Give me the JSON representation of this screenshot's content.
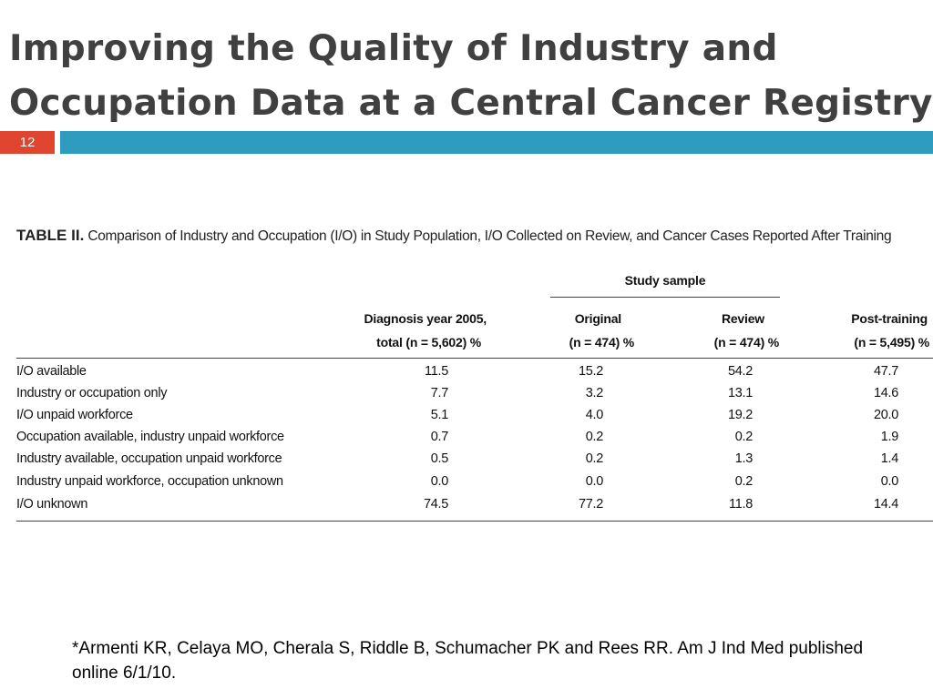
{
  "slide": {
    "title_line1": "Improving the Quality of Industry and",
    "title_line2": "Occupation Data at a Central Cancer Registry",
    "page_number": "12",
    "accent_colors": {
      "page_badge": "#e0452f",
      "title_bar": "#2d9cbf"
    }
  },
  "table": {
    "label": "TABLE II.",
    "caption": "Comparison of Industry and Occupation (I/O) in Study Population, I/O Collected on Review, and Cancer Cases Reported After Training",
    "group_header": "Study sample",
    "columns": [
      {
        "line1": "Diagnosis year 2005,",
        "line2": "total (n = 5,602) %"
      },
      {
        "line1": "Original",
        "line2": "(n = 474) %"
      },
      {
        "line1": "Review",
        "line2": "(n = 474) %"
      },
      {
        "line1": "Post-training",
        "line2": "(n = 5,495) %"
      }
    ],
    "rows": [
      {
        "label": "I/O available",
        "values": [
          "11.5",
          "15.2",
          "54.2",
          "47.7"
        ]
      },
      {
        "label": "Industry or occupation only",
        "values": [
          "7.7",
          "3.2",
          "13.1",
          "14.6"
        ]
      },
      {
        "label": "I/O unpaid workforce",
        "values": [
          "5.1",
          "4.0",
          "19.2",
          "20.0"
        ]
      },
      {
        "label": "Occupation available, industry unpaid workforce",
        "values": [
          "0.7",
          "0.2",
          "0.2",
          "1.9"
        ]
      },
      {
        "label": "Industry available, occupation unpaid workforce",
        "values": [
          "0.5",
          "0.2",
          "1.3",
          "1.4"
        ]
      },
      {
        "label": "Industry unpaid workforce, occupation unknown",
        "values": [
          "0.0",
          "0.0",
          "0.2",
          "0.0"
        ]
      },
      {
        "label": "I/O unknown",
        "values": [
          "74.5",
          "77.2",
          "11.8",
          "14.4"
        ]
      }
    ]
  },
  "footnote": "*Armenti KR, Celaya MO, Cherala S, Riddle B, Schumacher PK and Rees RR.  Am J Ind Med published online 6/1/10."
}
